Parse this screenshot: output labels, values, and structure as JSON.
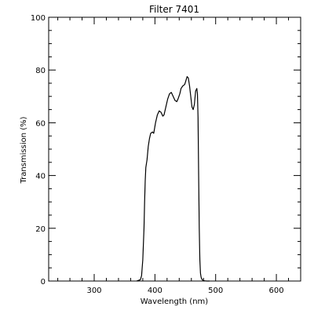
{
  "chart_data": {
    "type": "line",
    "title": "Filter 7401",
    "xlabel": "Wavelength (nm)",
    "ylabel": "Transmission (%)",
    "xlim": [
      225,
      640
    ],
    "ylim": [
      0,
      100
    ],
    "x_ticks": [
      300,
      400,
      500,
      600
    ],
    "x_tick_labels": [
      "300",
      "400",
      "500",
      "600"
    ],
    "y_ticks": [
      0,
      20,
      40,
      60,
      80,
      100
    ],
    "y_tick_labels": [
      "0",
      "20",
      "40",
      "60",
      "80",
      "100"
    ],
    "x_minor_step": 20,
    "y_minor_step": 5,
    "grid": false,
    "series": [
      {
        "color": "#000000",
        "x": [
          370,
          376,
          378,
          380,
          382,
          383,
          384,
          385,
          387,
          389,
          391,
          393,
          396,
          398,
          401,
          404,
          407,
          410,
          413,
          415,
          418,
          421,
          424,
          427,
          430,
          433,
          436,
          438,
          441,
          443,
          446,
          449,
          451,
          453,
          455,
          457,
          459,
          461,
          463,
          465,
          467,
          469,
          470,
          471,
          472,
          473,
          474,
          475,
          476,
          477,
          478,
          479,
          480,
          482,
          485,
          490
        ],
        "y": [
          0,
          0.5,
          2,
          8,
          20,
          30,
          38,
          43,
          46,
          51,
          54,
          56,
          56.5,
          56,
          60,
          63,
          64.5,
          64,
          62.5,
          63,
          66,
          69,
          71,
          71.5,
          70,
          68.5,
          68,
          69,
          71,
          73,
          74,
          74.5,
          76,
          77.5,
          77,
          74,
          70,
          66,
          65,
          67,
          72,
          73,
          71,
          62,
          40,
          20,
          8,
          3,
          1.5,
          0.8,
          0.5,
          0.3,
          0.2,
          0.1,
          0,
          0
        ]
      }
    ]
  }
}
